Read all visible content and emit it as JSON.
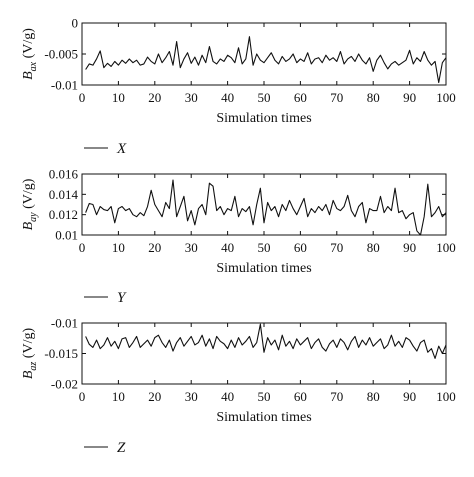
{
  "chart_data": [
    {
      "type": "line",
      "xlabel": "Simulation times",
      "ylabel_main": "B",
      "ylabel_sub": "ax",
      "ylabel_unit": " (V/g)",
      "xlim": [
        0,
        100
      ],
      "ylim": [
        -0.01,
        0
      ],
      "xticks": [
        "0",
        "10",
        "20",
        "30",
        "40",
        "50",
        "60",
        "70",
        "80",
        "90",
        "100"
      ],
      "yticks": [
        "0",
        "-0.005",
        "-0.01"
      ],
      "legend": "X",
      "series": [
        {
          "x": [
            1,
            2,
            3,
            4,
            5,
            6,
            7,
            8,
            9,
            10,
            11,
            12,
            13,
            14,
            15,
            16,
            17,
            18,
            19,
            20,
            21,
            22,
            23,
            24,
            25,
            26,
            27,
            28,
            29,
            30,
            31,
            32,
            33,
            34,
            35,
            36,
            37,
            38,
            39,
            40,
            41,
            42,
            43,
            44,
            45,
            46,
            47,
            48,
            49,
            50,
            51,
            52,
            53,
            54,
            55,
            56,
            57,
            58,
            59,
            60,
            61,
            62,
            63,
            64,
            65,
            66,
            67,
            68,
            69,
            70,
            71,
            72,
            73,
            74,
            75,
            76,
            77,
            78,
            79,
            80,
            81,
            82,
            83,
            84,
            85,
            86,
            87,
            88,
            89,
            90,
            91,
            92,
            93,
            94,
            95,
            96,
            97,
            98,
            99,
            100
          ],
          "y": [
            -0.0075,
            -0.0066,
            -0.0068,
            -0.0058,
            -0.0045,
            -0.0072,
            -0.0065,
            -0.007,
            -0.0062,
            -0.0068,
            -0.006,
            -0.0065,
            -0.0058,
            -0.0064,
            -0.006,
            -0.0068,
            -0.0066,
            -0.0055,
            -0.0062,
            -0.0066,
            -0.005,
            -0.0064,
            -0.0056,
            -0.0046,
            -0.0068,
            -0.003,
            -0.0072,
            -0.0058,
            -0.0048,
            -0.0065,
            -0.0055,
            -0.0068,
            -0.0052,
            -0.0064,
            -0.0038,
            -0.0062,
            -0.0066,
            -0.0058,
            -0.0062,
            -0.0052,
            -0.0056,
            -0.0064,
            -0.004,
            -0.0066,
            -0.0058,
            -0.0022,
            -0.0068,
            -0.005,
            -0.006,
            -0.0064,
            -0.0056,
            -0.0048,
            -0.006,
            -0.0066,
            -0.0054,
            -0.0062,
            -0.0058,
            -0.005,
            -0.0064,
            -0.0058,
            -0.0062,
            -0.0048,
            -0.0066,
            -0.0058,
            -0.0056,
            -0.0064,
            -0.0052,
            -0.006,
            -0.0056,
            -0.0062,
            -0.0046,
            -0.0066,
            -0.0058,
            -0.0054,
            -0.0062,
            -0.005,
            -0.006,
            -0.0066,
            -0.0056,
            -0.0078,
            -0.006,
            -0.0052,
            -0.0064,
            -0.0074,
            -0.0066,
            -0.0062,
            -0.0068,
            -0.0064,
            -0.006,
            -0.0044,
            -0.0066,
            -0.0056,
            -0.0062,
            -0.0046,
            -0.006,
            -0.0068,
            -0.0062,
            -0.0096,
            -0.0064,
            -0.0056
          ]
        }
      ]
    },
    {
      "type": "line",
      "xlabel": "Simulation times",
      "ylabel_main": "B",
      "ylabel_sub": "ay",
      "ylabel_unit": " (V/g)",
      "xlim": [
        0,
        100
      ],
      "ylim": [
        0.01,
        0.016
      ],
      "xticks": [
        "0",
        "10",
        "20",
        "30",
        "40",
        "50",
        "60",
        "70",
        "80",
        "90",
        "100"
      ],
      "yticks": [
        "0.016",
        "0.014",
        "0.012",
        "0.01"
      ],
      "legend": "Y",
      "series": [
        {
          "x": [
            1,
            2,
            3,
            4,
            5,
            6,
            7,
            8,
            9,
            10,
            11,
            12,
            13,
            14,
            15,
            16,
            17,
            18,
            19,
            20,
            21,
            22,
            23,
            24,
            25,
            26,
            27,
            28,
            29,
            30,
            31,
            32,
            33,
            34,
            35,
            36,
            37,
            38,
            39,
            40,
            41,
            42,
            43,
            44,
            45,
            46,
            47,
            48,
            49,
            50,
            51,
            52,
            53,
            54,
            55,
            56,
            57,
            58,
            59,
            60,
            61,
            62,
            63,
            64,
            65,
            66,
            67,
            68,
            69,
            70,
            71,
            72,
            73,
            74,
            75,
            76,
            77,
            78,
            79,
            80,
            81,
            82,
            83,
            84,
            85,
            86,
            87,
            88,
            89,
            90,
            91,
            92,
            93,
            94,
            95,
            96,
            97,
            98,
            99,
            100
          ],
          "y": [
            0.0122,
            0.0131,
            0.013,
            0.012,
            0.0128,
            0.0125,
            0.0124,
            0.0128,
            0.0112,
            0.0126,
            0.0128,
            0.0124,
            0.0126,
            0.012,
            0.0118,
            0.0122,
            0.0119,
            0.0128,
            0.0144,
            0.013,
            0.0124,
            0.0118,
            0.0132,
            0.0126,
            0.0154,
            0.0118,
            0.0128,
            0.0138,
            0.0114,
            0.0124,
            0.011,
            0.0126,
            0.013,
            0.012,
            0.0151,
            0.0148,
            0.0124,
            0.0128,
            0.012,
            0.0126,
            0.0124,
            0.0138,
            0.0118,
            0.0126,
            0.0123,
            0.0128,
            0.011,
            0.013,
            0.0146,
            0.0112,
            0.0132,
            0.0124,
            0.0128,
            0.0118,
            0.013,
            0.0124,
            0.0134,
            0.0126,
            0.012,
            0.0128,
            0.0136,
            0.0118,
            0.0126,
            0.0122,
            0.0128,
            0.0124,
            0.013,
            0.012,
            0.0134,
            0.0126,
            0.0124,
            0.0128,
            0.0139,
            0.0124,
            0.0118,
            0.0128,
            0.0132,
            0.0112,
            0.0126,
            0.0124,
            0.0124,
            0.0138,
            0.0122,
            0.0128,
            0.0124,
            0.0146,
            0.0122,
            0.0124,
            0.0116,
            0.012,
            0.0122,
            0.0104,
            0.01,
            0.0118,
            0.015,
            0.0118,
            0.0122,
            0.0128,
            0.0118,
            0.0122
          ]
        }
      ]
    },
    {
      "type": "line",
      "xlabel": "Simulation times",
      "ylabel_main": "B",
      "ylabel_sub": "az",
      "ylabel_unit": " (V/g)",
      "xlim": [
        0,
        100
      ],
      "ylim": [
        -0.02,
        -0.01
      ],
      "xticks": [
        "0",
        "10",
        "20",
        "30",
        "40",
        "50",
        "60",
        "70",
        "80",
        "90",
        "100"
      ],
      "yticks": [
        "-0.01",
        "-0.015",
        "-0.02"
      ],
      "legend": "Z",
      "series": [
        {
          "x": [
            1,
            2,
            3,
            4,
            5,
            6,
            7,
            8,
            9,
            10,
            11,
            12,
            13,
            14,
            15,
            16,
            17,
            18,
            19,
            20,
            21,
            22,
            23,
            24,
            25,
            26,
            27,
            28,
            29,
            30,
            31,
            32,
            33,
            34,
            35,
            36,
            37,
            38,
            39,
            40,
            41,
            42,
            43,
            44,
            45,
            46,
            47,
            48,
            49,
            50,
            51,
            52,
            53,
            54,
            55,
            56,
            57,
            58,
            59,
            60,
            61,
            62,
            63,
            64,
            65,
            66,
            67,
            68,
            69,
            70,
            71,
            72,
            73,
            74,
            75,
            76,
            77,
            78,
            79,
            80,
            81,
            82,
            83,
            84,
            85,
            86,
            87,
            88,
            89,
            90,
            91,
            92,
            93,
            94,
            95,
            96,
            97,
            98,
            99,
            100
          ],
          "y": [
            -0.0122,
            -0.0135,
            -0.014,
            -0.0128,
            -0.0142,
            -0.0136,
            -0.0124,
            -0.0138,
            -0.013,
            -0.0142,
            -0.0126,
            -0.0124,
            -0.014,
            -0.0132,
            -0.0122,
            -0.014,
            -0.0134,
            -0.0128,
            -0.0138,
            -0.0124,
            -0.012,
            -0.0132,
            -0.014,
            -0.0128,
            -0.0146,
            -0.0132,
            -0.0124,
            -0.0138,
            -0.013,
            -0.0122,
            -0.0136,
            -0.0132,
            -0.012,
            -0.0138,
            -0.0126,
            -0.0142,
            -0.0122,
            -0.013,
            -0.0134,
            -0.0142,
            -0.0128,
            -0.014,
            -0.0124,
            -0.0136,
            -0.013,
            -0.0122,
            -0.014,
            -0.0132,
            -0.0102,
            -0.0148,
            -0.0124,
            -0.0136,
            -0.0128,
            -0.0144,
            -0.012,
            -0.0138,
            -0.013,
            -0.0142,
            -0.0126,
            -0.0136,
            -0.013,
            -0.0124,
            -0.0142,
            -0.0132,
            -0.0126,
            -0.014,
            -0.0146,
            -0.0134,
            -0.0128,
            -0.014,
            -0.0126,
            -0.0132,
            -0.0144,
            -0.013,
            -0.0122,
            -0.014,
            -0.0128,
            -0.0136,
            -0.0124,
            -0.0138,
            -0.0132,
            -0.0126,
            -0.0142,
            -0.0136,
            -0.012,
            -0.0138,
            -0.013,
            -0.014,
            -0.0124,
            -0.0128,
            -0.0138,
            -0.0146,
            -0.0132,
            -0.0128,
            -0.0148,
            -0.0142,
            -0.0158,
            -0.0138,
            -0.015,
            -0.0136
          ]
        }
      ]
    }
  ]
}
